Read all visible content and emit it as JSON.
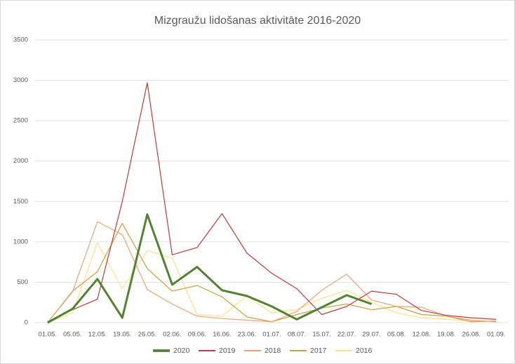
{
  "chart_data": {
    "type": "line",
    "title": "Mizgraužu lidošanas aktivitāte 2016-2020",
    "categories": [
      "01.05.",
      "05.05.",
      "12.05.",
      "19.05.",
      "26.05.",
      "02.06.",
      "09.06.",
      "16.06.",
      "23.06.",
      "01.07.",
      "08.07.",
      "15.07.",
      "22.07.",
      "29.07.",
      "05.08.",
      "12.08.",
      "19.08.",
      "26.08.",
      "01.09."
    ],
    "series": [
      {
        "name": "2020",
        "color": "#548235",
        "width": 3,
        "values": [
          0,
          170,
          540,
          60,
          1340,
          470,
          690,
          400,
          330,
          200,
          40,
          190,
          340,
          230,
          null,
          null,
          null,
          null,
          null
        ]
      },
      {
        "name": "2019",
        "color": "#c0393b",
        "width": 1.2,
        "values": [
          0,
          160,
          290,
          1500,
          2970,
          840,
          930,
          1350,
          860,
          610,
          420,
          100,
          200,
          390,
          350,
          150,
          90,
          60,
          40
        ]
      },
      {
        "name": "2018",
        "color": "#e8a476",
        "width": 1.2,
        "values": [
          0,
          380,
          1250,
          1090,
          410,
          230,
          80,
          50,
          30,
          10,
          140,
          400,
          600,
          280,
          200,
          190,
          80,
          30,
          10
        ]
      },
      {
        "name": "2017",
        "color": "#c9a03a",
        "width": 1.2,
        "values": [
          0,
          390,
          630,
          1230,
          670,
          390,
          460,
          320,
          70,
          10,
          100,
          180,
          230,
          160,
          200,
          100,
          80,
          10,
          20
        ]
      },
      {
        "name": "2016",
        "color": "#ffe08a",
        "width": 1.2,
        "values": [
          0,
          120,
          990,
          420,
          890,
          800,
          100,
          80,
          330,
          120,
          160,
          300,
          400,
          250,
          120,
          60,
          40,
          20,
          10
        ]
      }
    ],
    "ylim": [
      0,
      3500
    ],
    "yticks": [
      0,
      500,
      1000,
      1500,
      2000,
      2500,
      3000,
      3500
    ],
    "grid": true,
    "legend": "bottom"
  }
}
